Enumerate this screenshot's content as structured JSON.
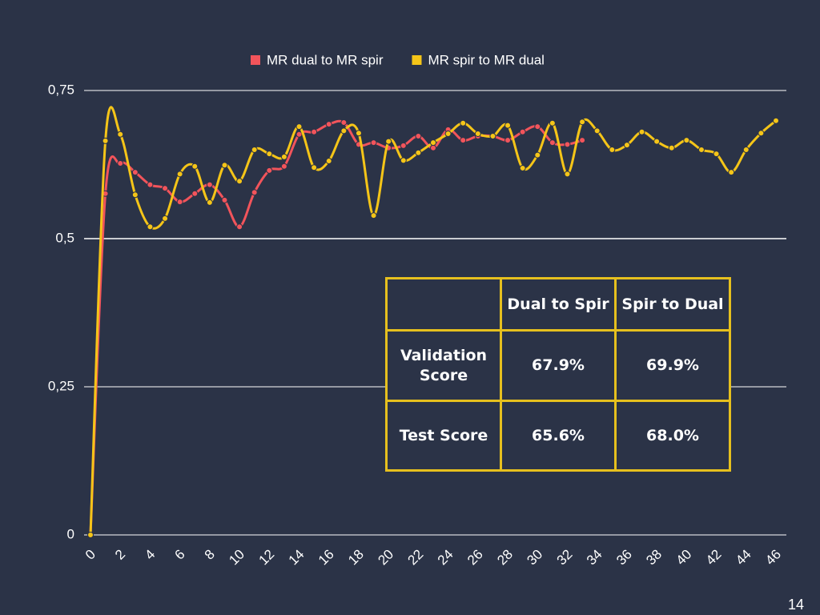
{
  "chart_data": {
    "type": "line",
    "x": [
      0,
      1,
      2,
      3,
      4,
      5,
      6,
      7,
      8,
      9,
      10,
      11,
      12,
      13,
      14,
      15,
      16,
      17,
      18,
      19,
      20,
      21,
      22,
      23,
      24,
      25,
      26,
      27,
      28,
      29,
      30,
      31,
      32,
      33,
      34,
      35,
      36,
      37,
      38,
      39,
      40,
      41,
      42,
      43,
      44,
      45,
      46
    ],
    "series": [
      {
        "name": "MR dual to MR spir",
        "color": "#f2545b",
        "values": [
          0,
          0.576,
          0.627,
          0.612,
          0.591,
          0.585,
          0.562,
          0.576,
          0.591,
          0.565,
          0.52,
          0.578,
          0.615,
          0.622,
          0.676,
          0.68,
          0.693,
          0.696,
          0.659,
          0.662,
          0.653,
          0.657,
          0.673,
          0.653,
          0.684,
          0.666,
          0.673,
          0.673,
          0.666,
          0.68,
          0.689,
          0.662,
          0.659,
          0.666,
          null,
          null,
          null,
          null,
          null,
          null,
          null,
          null,
          null,
          null,
          null,
          null,
          null
        ]
      },
      {
        "name": "MR spir to MR dual",
        "color": "#f5c518",
        "values": [
          0,
          0.665,
          0.676,
          0.574,
          0.52,
          0.534,
          0.609,
          0.622,
          0.561,
          0.624,
          0.597,
          0.65,
          0.643,
          0.638,
          0.689,
          0.62,
          0.631,
          0.682,
          0.678,
          0.539,
          0.664,
          0.632,
          0.645,
          0.662,
          0.677,
          0.695,
          0.677,
          0.673,
          0.691,
          0.619,
          0.641,
          0.695,
          0.609,
          0.697,
          0.682,
          0.65,
          0.658,
          0.68,
          0.664,
          0.653,
          0.666,
          0.65,
          0.643,
          0.612,
          0.65,
          0.678,
          0.699
        ]
      }
    ],
    "xlim": [
      0,
      46
    ],
    "xticks": [
      0,
      2,
      4,
      6,
      8,
      10,
      12,
      14,
      16,
      18,
      20,
      22,
      24,
      26,
      28,
      30,
      32,
      34,
      36,
      38,
      40,
      42,
      44,
      46
    ],
    "ylim": [
      0,
      0.75
    ],
    "yticks": [
      {
        "value": 0,
        "label": "0"
      },
      {
        "value": 0.25,
        "label": "0,25"
      },
      {
        "value": 0.5,
        "label": "0,5"
      },
      {
        "value": 0.75,
        "label": "0,75"
      }
    ],
    "grid": true,
    "legend": "top"
  },
  "table": {
    "columns": [
      "Dual to Spir",
      "Spir to Dual"
    ],
    "rows": [
      {
        "label": "Validation Score",
        "values": [
          "67.9%",
          "69.9%"
        ]
      },
      {
        "label": "Test Score",
        "values": [
          "65.6%",
          "68.0%"
        ]
      }
    ]
  },
  "page_number": "14"
}
